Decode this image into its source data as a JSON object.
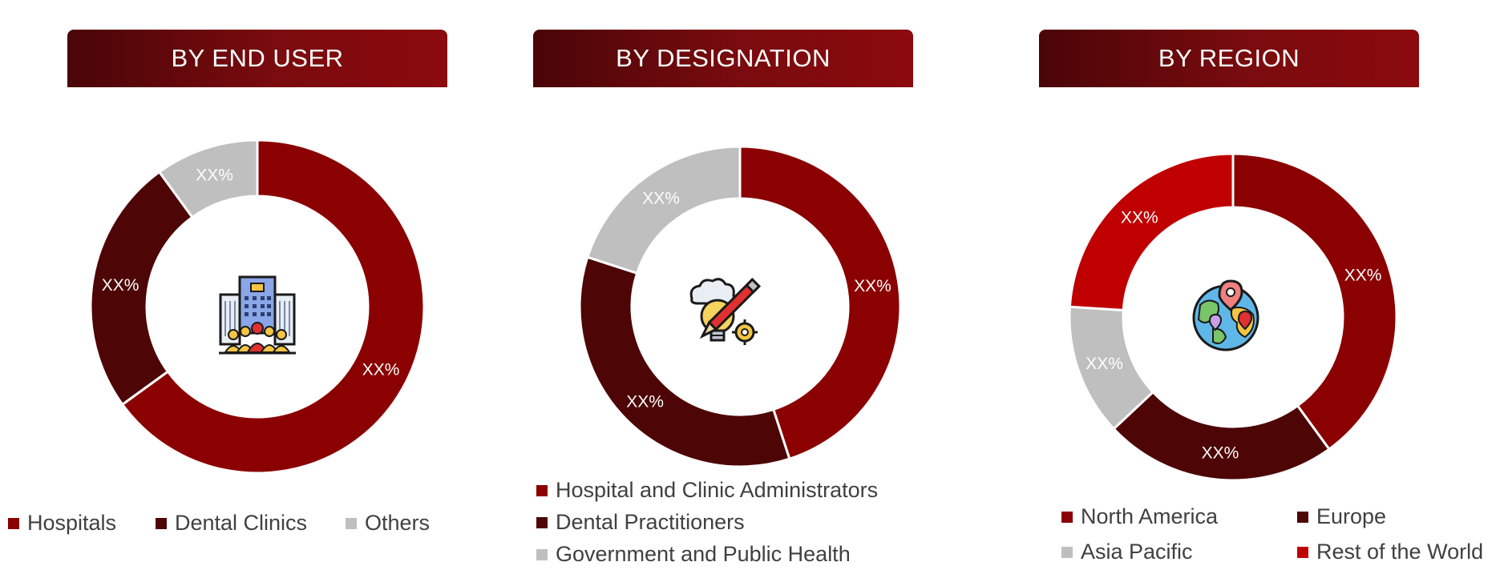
{
  "colors": {
    "dark_red": "#8b0000",
    "maroon": "#4d0505",
    "gray": "#bfbfbf",
    "red": "#c00000"
  },
  "chart_data": [
    {
      "type": "pie",
      "title": "BY END USER",
      "categories": [
        "Hospitals",
        "Dental Clinics",
        "Others"
      ],
      "values": [
        0.65,
        0.25,
        0.1
      ],
      "data_labels": [
        "XX%",
        "XX%",
        "XX%"
      ],
      "colors": [
        "#8b0000",
        "#4d0505",
        "#bfbfbf"
      ],
      "legend": "bottom",
      "center_icon": "hospital-building-people-icon"
    },
    {
      "type": "pie",
      "title": "BY DESIGNATION",
      "categories": [
        "Hospital and Clinic Administrators",
        "Dental Practitioners",
        "Government and Public Health"
      ],
      "values": [
        0.45,
        0.35,
        0.2
      ],
      "data_labels": [
        "XX%",
        "XX%",
        "XX%"
      ],
      "colors": [
        "#8b0000",
        "#4d0505",
        "#bfbfbf"
      ],
      "legend": "bottom",
      "center_icon": "creative-idea-icon"
    },
    {
      "type": "pie",
      "title": "BY REGION",
      "categories": [
        "North America",
        "Europe",
        "Asia Pacific",
        "Rest of the World"
      ],
      "values": [
        0.4,
        0.23,
        0.13,
        0.24
      ],
      "data_labels": [
        "XX%",
        "XX%",
        "XX%",
        "XX%"
      ],
      "colors": [
        "#8b0000",
        "#4d0505",
        "#bfbfbf",
        "#c00000"
      ],
      "legend": "bottom",
      "center_icon": "globe-location-icon"
    }
  ]
}
